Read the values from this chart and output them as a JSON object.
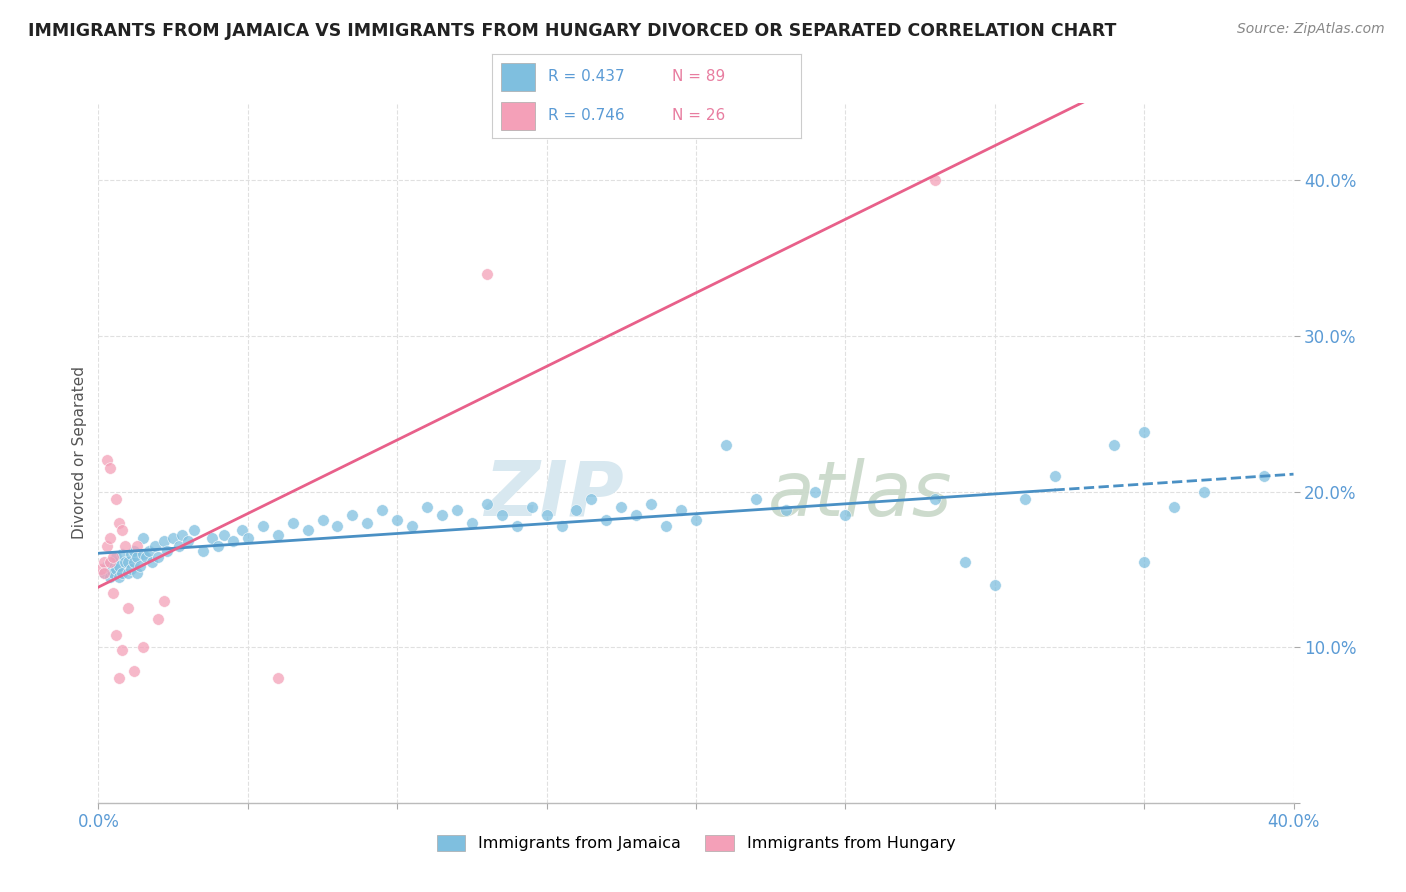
{
  "title": "IMMIGRANTS FROM JAMAICA VS IMMIGRANTS FROM HUNGARY DIVORCED OR SEPARATED CORRELATION CHART",
  "source": "Source: ZipAtlas.com",
  "ylabel": "Divorced or Separated",
  "xlim": [
    0.0,
    0.4
  ],
  "ylim": [
    0.0,
    0.45
  ],
  "xticks": [
    0.0,
    0.05,
    0.1,
    0.15,
    0.2,
    0.25,
    0.3,
    0.35,
    0.4
  ],
  "yticks": [
    0.0,
    0.1,
    0.2,
    0.3,
    0.4
  ],
  "jamaica_color": "#7fbfdf",
  "hungary_color": "#f4a0b8",
  "jamaica_line_color": "#4a90c4",
  "hungary_line_color": "#e8608a",
  "jamaica_R": 0.437,
  "jamaica_N": 89,
  "hungary_R": 0.746,
  "hungary_N": 26,
  "jamaica_points": [
    [
      0.002,
      0.148
    ],
    [
      0.003,
      0.152
    ],
    [
      0.004,
      0.15
    ],
    [
      0.004,
      0.145
    ],
    [
      0.005,
      0.148
    ],
    [
      0.005,
      0.155
    ],
    [
      0.006,
      0.15
    ],
    [
      0.006,
      0.158
    ],
    [
      0.007,
      0.145
    ],
    [
      0.007,
      0.152
    ],
    [
      0.008,
      0.148
    ],
    [
      0.008,
      0.16
    ],
    [
      0.009,
      0.155
    ],
    [
      0.01,
      0.148
    ],
    [
      0.01,
      0.155
    ],
    [
      0.011,
      0.16
    ],
    [
      0.011,
      0.15
    ],
    [
      0.012,
      0.155
    ],
    [
      0.012,
      0.162
    ],
    [
      0.013,
      0.148
    ],
    [
      0.013,
      0.158
    ],
    [
      0.014,
      0.152
    ],
    [
      0.015,
      0.16
    ],
    [
      0.015,
      0.17
    ],
    [
      0.016,
      0.158
    ],
    [
      0.017,
      0.162
    ],
    [
      0.018,
      0.155
    ],
    [
      0.019,
      0.165
    ],
    [
      0.02,
      0.158
    ],
    [
      0.022,
      0.168
    ],
    [
      0.023,
      0.162
    ],
    [
      0.025,
      0.17
    ],
    [
      0.027,
      0.165
    ],
    [
      0.028,
      0.172
    ],
    [
      0.03,
      0.168
    ],
    [
      0.032,
      0.175
    ],
    [
      0.035,
      0.162
    ],
    [
      0.038,
      0.17
    ],
    [
      0.04,
      0.165
    ],
    [
      0.042,
      0.172
    ],
    [
      0.045,
      0.168
    ],
    [
      0.048,
      0.175
    ],
    [
      0.05,
      0.17
    ],
    [
      0.055,
      0.178
    ],
    [
      0.06,
      0.172
    ],
    [
      0.065,
      0.18
    ],
    [
      0.07,
      0.175
    ],
    [
      0.075,
      0.182
    ],
    [
      0.08,
      0.178
    ],
    [
      0.085,
      0.185
    ],
    [
      0.09,
      0.18
    ],
    [
      0.095,
      0.188
    ],
    [
      0.1,
      0.182
    ],
    [
      0.105,
      0.178
    ],
    [
      0.11,
      0.19
    ],
    [
      0.115,
      0.185
    ],
    [
      0.12,
      0.188
    ],
    [
      0.125,
      0.18
    ],
    [
      0.13,
      0.192
    ],
    [
      0.135,
      0.185
    ],
    [
      0.14,
      0.178
    ],
    [
      0.145,
      0.19
    ],
    [
      0.15,
      0.185
    ],
    [
      0.155,
      0.178
    ],
    [
      0.16,
      0.188
    ],
    [
      0.165,
      0.195
    ],
    [
      0.17,
      0.182
    ],
    [
      0.175,
      0.19
    ],
    [
      0.18,
      0.185
    ],
    [
      0.185,
      0.192
    ],
    [
      0.19,
      0.178
    ],
    [
      0.195,
      0.188
    ],
    [
      0.2,
      0.182
    ],
    [
      0.21,
      0.23
    ],
    [
      0.22,
      0.195
    ],
    [
      0.23,
      0.188
    ],
    [
      0.24,
      0.2
    ],
    [
      0.25,
      0.185
    ],
    [
      0.28,
      0.195
    ],
    [
      0.29,
      0.155
    ],
    [
      0.3,
      0.14
    ],
    [
      0.31,
      0.195
    ],
    [
      0.32,
      0.21
    ],
    [
      0.34,
      0.23
    ],
    [
      0.35,
      0.238
    ],
    [
      0.36,
      0.19
    ],
    [
      0.37,
      0.2
    ],
    [
      0.39,
      0.21
    ],
    [
      0.35,
      0.155
    ]
  ],
  "hungary_points": [
    [
      0.001,
      0.15
    ],
    [
      0.002,
      0.155
    ],
    [
      0.002,
      0.148
    ],
    [
      0.003,
      0.22
    ],
    [
      0.003,
      0.165
    ],
    [
      0.004,
      0.17
    ],
    [
      0.004,
      0.155
    ],
    [
      0.004,
      0.215
    ],
    [
      0.005,
      0.158
    ],
    [
      0.005,
      0.135
    ],
    [
      0.006,
      0.195
    ],
    [
      0.006,
      0.108
    ],
    [
      0.007,
      0.18
    ],
    [
      0.007,
      0.08
    ],
    [
      0.008,
      0.175
    ],
    [
      0.008,
      0.098
    ],
    [
      0.009,
      0.165
    ],
    [
      0.01,
      0.125
    ],
    [
      0.012,
      0.085
    ],
    [
      0.013,
      0.165
    ],
    [
      0.015,
      0.1
    ],
    [
      0.02,
      0.118
    ],
    [
      0.022,
      0.13
    ],
    [
      0.06,
      0.08
    ],
    [
      0.13,
      0.34
    ],
    [
      0.28,
      0.4
    ]
  ],
  "background_color": "#ffffff",
  "grid_color": "#e0e0e0"
}
